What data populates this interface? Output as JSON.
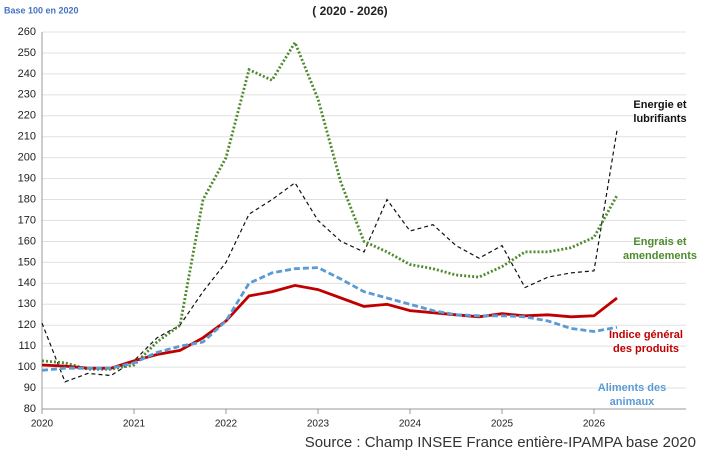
{
  "chart_data": {
    "type": "line",
    "title": "( 2020 - 2026)",
    "subtitle": "Base 100 en 2020",
    "source": "Source : Champ INSEE France entière-IPAMPA base 2020",
    "x": [
      2020,
      2020.25,
      2020.5,
      2020.75,
      2021,
      2021.25,
      2021.5,
      2021.75,
      2022,
      2022.25,
      2022.5,
      2022.75,
      2023,
      2023.25,
      2023.5,
      2023.75,
      2024,
      2024.25,
      2024.5,
      2024.75,
      2025,
      2025.25,
      2025.5,
      2025.75,
      2026,
      2026.25
    ],
    "xlim": [
      2020,
      2027
    ],
    "xticks": [
      2020,
      2021,
      2022,
      2023,
      2024,
      2025,
      2026
    ],
    "ylim": [
      80,
      260
    ],
    "yticks": [
      80,
      90,
      100,
      110,
      120,
      130,
      140,
      150,
      160,
      170,
      180,
      190,
      200,
      210,
      220,
      230,
      240,
      250,
      260
    ],
    "grid": true,
    "series": [
      {
        "name": "Energie et lubrifiants",
        "color": "#111111",
        "dash": "4,3",
        "values": [
          121,
          93,
          97,
          96,
          103,
          114,
          120,
          136,
          150,
          173,
          180,
          188,
          170,
          160,
          155,
          180,
          165,
          168,
          158,
          152,
          158,
          138,
          143,
          145,
          146,
          213
        ]
      },
      {
        "name": "Engrais et amendements",
        "color": "#4e8a2e",
        "dash": "2,2",
        "values": [
          103,
          102,
          99,
          99,
          101,
          112,
          120,
          180,
          200,
          242,
          237,
          255,
          228,
          188,
          160,
          155,
          149,
          147,
          144,
          143,
          148,
          155,
          155,
          157,
          162,
          182
        ]
      },
      {
        "name": "Indice général des produits",
        "color": "#c00000",
        "dash": "",
        "values": [
          101,
          100.5,
          99.5,
          99.5,
          103,
          106,
          108,
          114,
          122,
          134,
          136,
          139,
          137,
          133,
          129,
          130,
          127,
          126,
          125,
          124,
          125.5,
          124.5,
          125,
          124,
          124.5,
          133
        ]
      },
      {
        "name": "Aliments des animaux",
        "color": "#5b9bd5",
        "dash": "6,3",
        "values": [
          98.5,
          99.5,
          99.5,
          99.5,
          102,
          107,
          110,
          112,
          122,
          140,
          145,
          147,
          147.5,
          142,
          136,
          133,
          130,
          127,
          125,
          124.5,
          124.5,
          124,
          122,
          118.5,
          117,
          119
        ]
      }
    ]
  }
}
